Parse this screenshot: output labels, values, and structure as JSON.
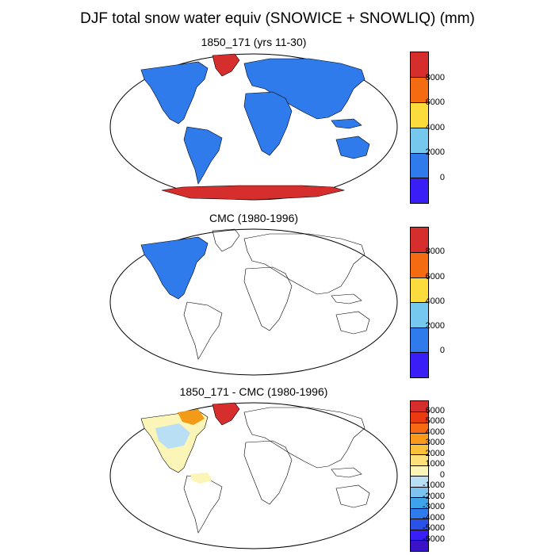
{
  "title": "DJF total snow water equiv (SNOWICE + SNOWLIQ) (mm)",
  "colors": {
    "ocean": "#ffffff",
    "coast": "#000000",
    "land_blue": "#2f7bec",
    "ice_red": "#d62d2d",
    "pale_yellow": "#fbf5b8",
    "light_blue": "#b9dff5",
    "orange": "#f39a16"
  },
  "panels": [
    {
      "title": "1850_171 (yrs 11-30)",
      "colorbar": {
        "labels": [
          "8000",
          "6000",
          "4000",
          "2000",
          "0"
        ],
        "colors": [
          "#d62d2d",
          "#f56b12",
          "#fcdc3c",
          "#77c8ef",
          "#2f7bec",
          "#3a1ef6"
        ]
      }
    },
    {
      "title": "CMC (1980-1996)",
      "colorbar": {
        "labels": [
          "8000",
          "6000",
          "4000",
          "2000",
          "0"
        ],
        "colors": [
          "#d62d2d",
          "#f56b12",
          "#fcdc3c",
          "#77c8ef",
          "#2f7bec",
          "#3a1ef6"
        ]
      }
    },
    {
      "title": "1850_171 - CMC (1980-1996)",
      "colorbar": {
        "labels": [
          "6000",
          "5000",
          "4000",
          "3000",
          "2000",
          "1000",
          "0",
          "-1000",
          "-2000",
          "-3000",
          "-4000",
          "-5000",
          "-6000"
        ],
        "colors": [
          "#d62d2d",
          "#e93a12",
          "#f56a12",
          "#f99a1c",
          "#fbc03a",
          "#fde07a",
          "#fbf5b8",
          "#b9dff5",
          "#7cc4ef",
          "#3fa3ea",
          "#2f7bec",
          "#2a52e8",
          "#3a1ef6",
          "#3a12c8"
        ]
      }
    }
  ]
}
